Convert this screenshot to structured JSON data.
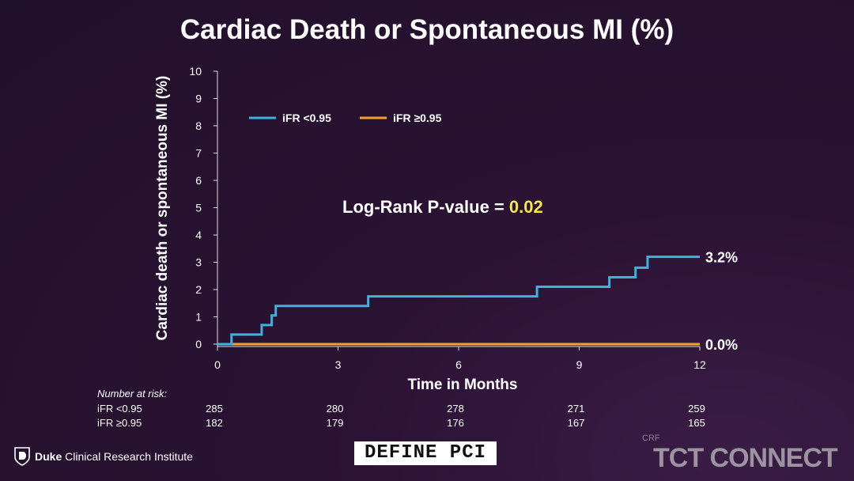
{
  "title": "Cardiac Death or Spontaneous MI (%)",
  "pvalue": {
    "label": "Log-Rank P-value = ",
    "value": "0.02",
    "value_color": "#f2e84a"
  },
  "risk_table": {
    "header": "Number at risk:",
    "rows": [
      {
        "label": "iFR <0.95",
        "values": [
          "285",
          "280",
          "278",
          "271",
          "259"
        ]
      },
      {
        "label": "iFR ≥0.95",
        "values": [
          "182",
          "179",
          "176",
          "167",
          "165"
        ]
      }
    ]
  },
  "footer": {
    "duke_bold": "Duke",
    "duke_rest": " Clinical Research Institute",
    "define_logo": "DEFINE PCI",
    "crf": "CRF",
    "tct": "TCT CONNECT"
  },
  "chart_data": {
    "type": "line",
    "step": true,
    "xlabel": "Time in Months",
    "ylabel": "Cardiac death or spontaneous MI (%)",
    "xlim": [
      0,
      12
    ],
    "ylim": [
      0,
      10
    ],
    "xticks": [
      0,
      3,
      6,
      9,
      12
    ],
    "yticks": [
      0,
      1,
      2,
      3,
      4,
      5,
      6,
      7,
      8,
      9,
      10
    ],
    "grid": false,
    "legend": "top-left",
    "series": [
      {
        "name": "iFR <0.95",
        "color": "#3bb3de",
        "end_label": "3.2%",
        "x": [
          0,
          0.35,
          1.1,
          1.35,
          1.45,
          3.75,
          7.95,
          9.75,
          10.4,
          10.7,
          12
        ],
        "y": [
          0,
          0.35,
          0.7,
          1.05,
          1.4,
          1.75,
          2.1,
          2.45,
          2.8,
          3.2,
          3.2
        ]
      },
      {
        "name": "iFR ≥0.95",
        "color": "#f0a22a",
        "end_label": "0.0%",
        "x": [
          0,
          12
        ],
        "y": [
          0,
          0
        ]
      }
    ]
  }
}
